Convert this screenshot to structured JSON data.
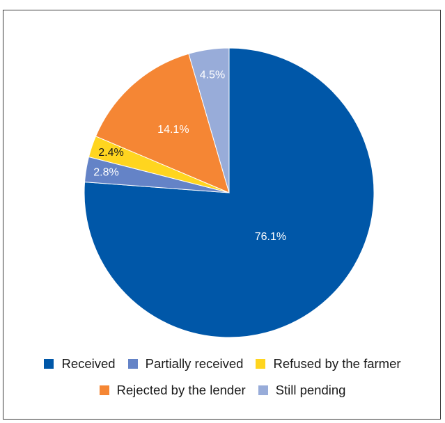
{
  "chart_data": {
    "type": "pie",
    "title": "",
    "start_angle_deg": 0,
    "direction": "clockwise",
    "slices": [
      {
        "label": "Received",
        "value": 76.1,
        "display": "76.1%",
        "color": "#0057a8",
        "label_color": "#ffffff"
      },
      {
        "label": "Partially received",
        "value": 2.8,
        "display": "2.8%",
        "color": "#6483c7",
        "label_color": "#ffffff"
      },
      {
        "label": "Refused by the farmer",
        "value": 2.4,
        "display": "2.4%",
        "color": "#ffd51f",
        "label_color": "#1a1a1a"
      },
      {
        "label": "Rejected by the lender",
        "value": 14.1,
        "display": "14.1%",
        "color": "#f58634",
        "label_color": "#ffffff"
      },
      {
        "label": "Still pending",
        "value": 4.5,
        "display": "4.5%",
        "color": "#98acd9",
        "label_color": "#ffffff"
      }
    ],
    "legend": {
      "placement": "bottom",
      "rows": [
        [
          "Received",
          "Partially received",
          "Refused by the farmer"
        ],
        [
          "Rejected by the lender",
          "Still pending"
        ]
      ]
    }
  }
}
